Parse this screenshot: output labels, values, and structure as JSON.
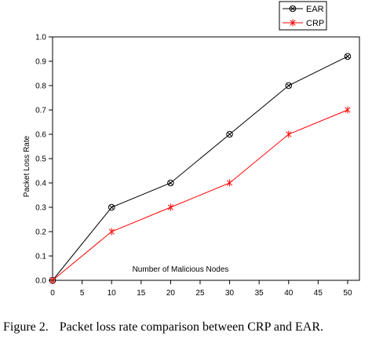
{
  "chart_data": {
    "type": "line",
    "x": [
      0,
      10,
      20,
      30,
      40,
      50
    ],
    "series": [
      {
        "name": "EAR",
        "values": [
          0,
          0.3,
          0.4,
          0.6,
          0.8,
          0.92
        ],
        "color": "#000000",
        "marker": "circle-x"
      },
      {
        "name": "CRP",
        "values": [
          0,
          0.2,
          0.3,
          0.4,
          0.6,
          0.7
        ],
        "color": "#ff0000",
        "marker": "asterisk"
      }
    ],
    "xlabel": "Number of Malicious Nodes",
    "ylabel": "Packet Loss Rate",
    "xlim": [
      0,
      52
    ],
    "ylim": [
      0,
      1
    ],
    "xticks": [
      0,
      5,
      10,
      15,
      20,
      25,
      30,
      35,
      40,
      45,
      50
    ],
    "yticks": [
      0.0,
      0.1,
      0.2,
      0.3,
      0.4,
      0.5,
      0.6,
      0.7,
      0.8,
      0.9,
      1.0
    ],
    "grid": false,
    "legend_position": "top-right"
  },
  "caption": {
    "label": "Figure 2.",
    "text": "Packet loss rate comparison between CRP and EAR."
  }
}
